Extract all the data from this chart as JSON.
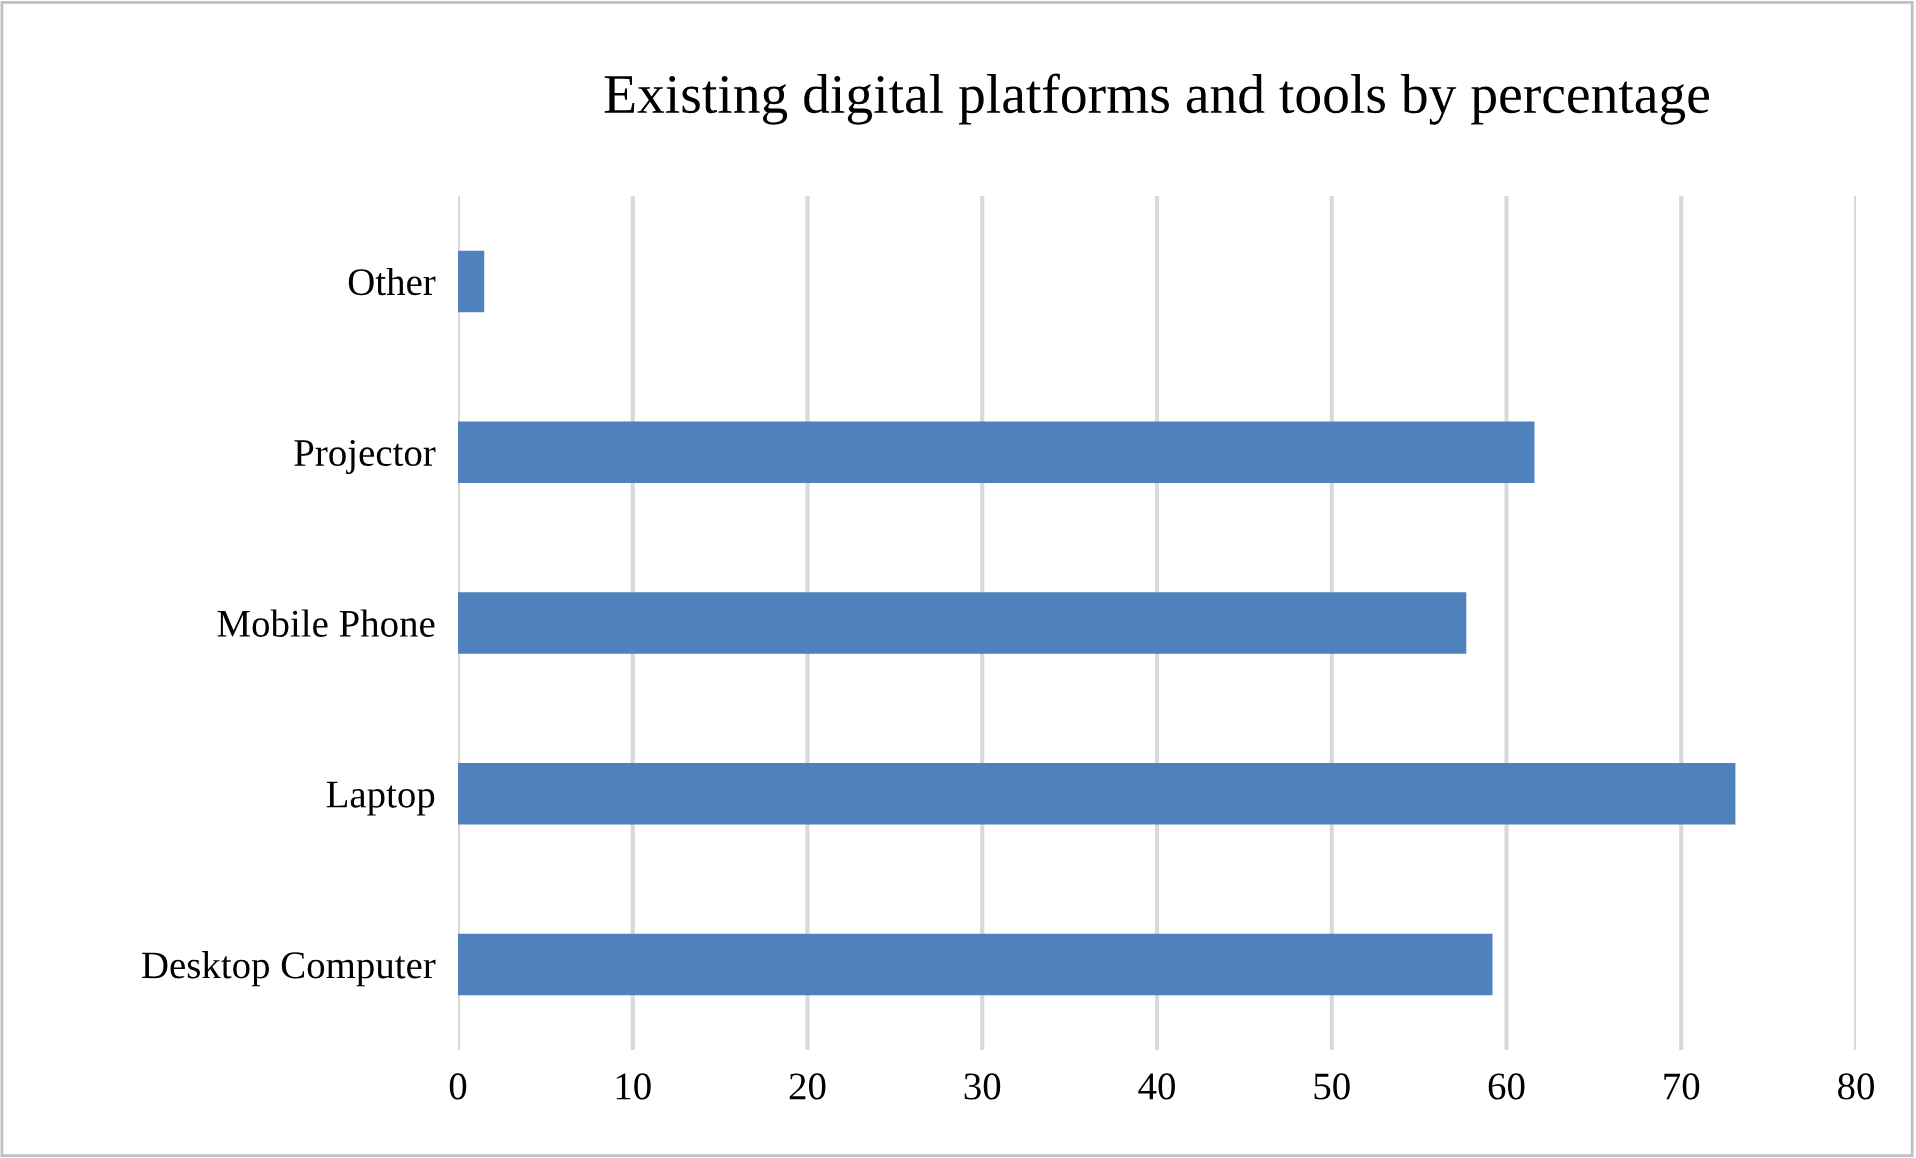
{
  "chart_data": {
    "type": "bar",
    "orientation": "horizontal",
    "title": "Existing digital platforms and tools by percentage",
    "categories": [
      "Other",
      "Projector",
      "Mobile Phone",
      "Laptop",
      "Desktop Computer"
    ],
    "values": [
      1.5,
      61.6,
      57.7,
      73.1,
      59.2
    ],
    "color": "#4f81bd",
    "xlim": [
      0,
      80
    ],
    "xticks": [
      0,
      10,
      20,
      30,
      40,
      50,
      60,
      70,
      80
    ],
    "grid": "x"
  }
}
